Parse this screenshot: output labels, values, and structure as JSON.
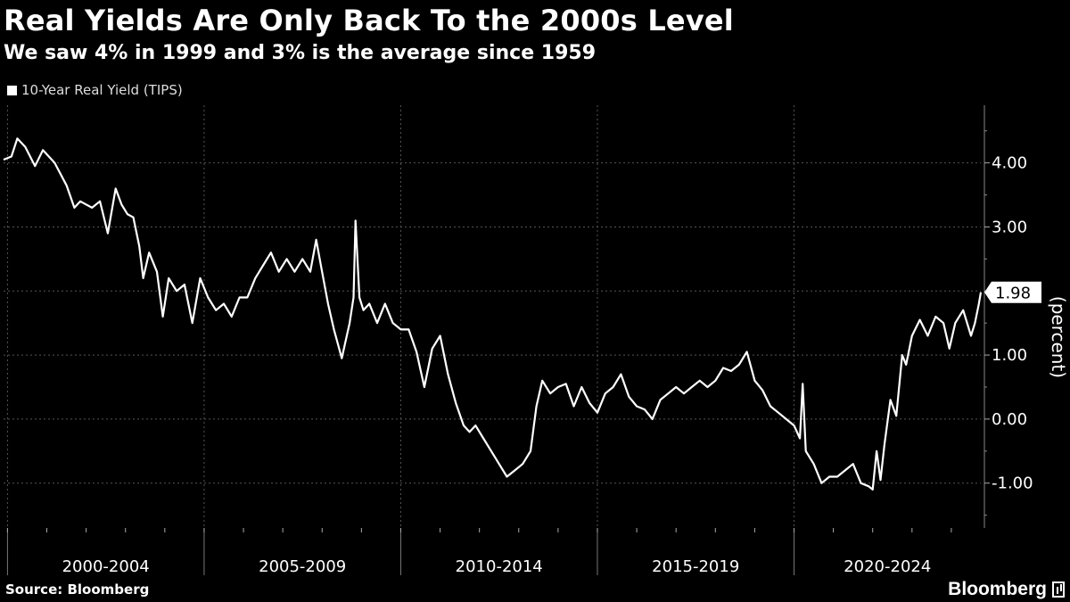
{
  "chart_data": {
    "type": "line",
    "title": "Real Yields Are Only Back To the 2000s Level",
    "subtitle": "We saw 4% in 1999 and 3% is the average since 1959",
    "ylabel": "(percent)",
    "ylim": [
      -1.7,
      4.9
    ],
    "yticks": [
      -1,
      0,
      1,
      2,
      3,
      4
    ],
    "ytick_labels": [
      "-1.00",
      "0.00",
      "1.00",
      "",
      "3.00",
      "4.00"
    ],
    "x_categories": [
      "2000-2004",
      "2005-2009",
      "2010-2014",
      "2015-2019",
      "2020-2024"
    ],
    "xlim": [
      1999.9,
      2024.75
    ],
    "grid": true,
    "legend_position": "top-left",
    "last_value_label": "1.98",
    "series": [
      {
        "name": "10-Year Real Yield (TIPS)",
        "color": "#ffffff",
        "x": [
          1999.9,
          2000.1,
          2000.25,
          2000.45,
          2000.7,
          2000.9,
          2001.2,
          2001.5,
          2001.7,
          2001.85,
          2002.0,
          2002.15,
          2002.35,
          2002.55,
          2002.75,
          2002.9,
          2003.05,
          2003.2,
          2003.35,
          2003.45,
          2003.6,
          2003.8,
          2003.95,
          2004.1,
          2004.3,
          2004.5,
          2004.7,
          2004.9,
          2005.1,
          2005.3,
          2005.5,
          2005.7,
          2005.9,
          2006.1,
          2006.3,
          2006.5,
          2006.7,
          2006.9,
          2007.1,
          2007.3,
          2007.5,
          2007.7,
          2007.85,
          2008.0,
          2008.15,
          2008.3,
          2008.5,
          2008.7,
          2008.8,
          2008.85,
          2008.95,
          2009.05,
          2009.2,
          2009.4,
          2009.6,
          2009.8,
          2010.0,
          2010.2,
          2010.4,
          2010.6,
          2010.8,
          2011.0,
          2011.2,
          2011.4,
          2011.6,
          2011.75,
          2011.9,
          2012.1,
          2012.3,
          2012.5,
          2012.7,
          2012.9,
          2013.1,
          2013.3,
          2013.45,
          2013.6,
          2013.8,
          2014.0,
          2014.2,
          2014.4,
          2014.6,
          2014.8,
          2015.0,
          2015.2,
          2015.4,
          2015.6,
          2015.8,
          2016.0,
          2016.2,
          2016.4,
          2016.6,
          2016.8,
          2017.0,
          2017.2,
          2017.4,
          2017.6,
          2017.8,
          2018.0,
          2018.2,
          2018.4,
          2018.6,
          2018.8,
          2019.0,
          2019.2,
          2019.4,
          2019.6,
          2019.8,
          2020.0,
          2020.15,
          2020.22,
          2020.3,
          2020.5,
          2020.7,
          2020.9,
          2021.1,
          2021.3,
          2021.5,
          2021.7,
          2021.9,
          2022.0,
          2022.1,
          2022.2,
          2022.3,
          2022.45,
          2022.6,
          2022.75,
          2022.85,
          2023.0,
          2023.2,
          2023.4,
          2023.6,
          2023.8,
          2023.95,
          2024.1,
          2024.3,
          2024.5,
          2024.6,
          2024.7,
          2024.75
        ],
        "values": [
          4.05,
          4.1,
          4.38,
          4.25,
          3.95,
          4.2,
          4.0,
          3.65,
          3.3,
          3.4,
          3.35,
          3.3,
          3.4,
          2.9,
          3.6,
          3.35,
          3.2,
          3.15,
          2.7,
          2.2,
          2.6,
          2.3,
          1.6,
          2.2,
          2.0,
          2.1,
          1.5,
          2.2,
          1.9,
          1.7,
          1.8,
          1.6,
          1.9,
          1.9,
          2.2,
          2.4,
          2.6,
          2.3,
          2.5,
          2.3,
          2.5,
          2.3,
          2.8,
          2.3,
          1.8,
          1.4,
          0.95,
          1.5,
          1.9,
          3.1,
          1.9,
          1.7,
          1.8,
          1.5,
          1.8,
          1.5,
          1.4,
          1.4,
          1.05,
          0.5,
          1.1,
          1.3,
          0.7,
          0.25,
          -0.1,
          -0.2,
          -0.1,
          -0.3,
          -0.5,
          -0.7,
          -0.9,
          -0.8,
          -0.7,
          -0.5,
          0.2,
          0.6,
          0.4,
          0.5,
          0.55,
          0.2,
          0.5,
          0.25,
          0.1,
          0.4,
          0.5,
          0.7,
          0.35,
          0.2,
          0.15,
          0.0,
          0.3,
          0.4,
          0.5,
          0.4,
          0.5,
          0.6,
          0.5,
          0.6,
          0.8,
          0.75,
          0.85,
          1.05,
          0.6,
          0.45,
          0.2,
          0.1,
          0.0,
          -0.1,
          -0.3,
          0.55,
          -0.5,
          -0.7,
          -1.0,
          -0.9,
          -0.9,
          -0.8,
          -0.7,
          -1.0,
          -1.05,
          -1.1,
          -0.5,
          -0.95,
          -0.4,
          0.3,
          0.05,
          1.0,
          0.85,
          1.3,
          1.55,
          1.3,
          1.6,
          1.5,
          1.1,
          1.5,
          1.7,
          1.3,
          1.5,
          1.8,
          1.98
        ],
        "last_value": 1.98
      }
    ],
    "source": "Source: Bloomberg",
    "brand": "Bloomberg"
  }
}
